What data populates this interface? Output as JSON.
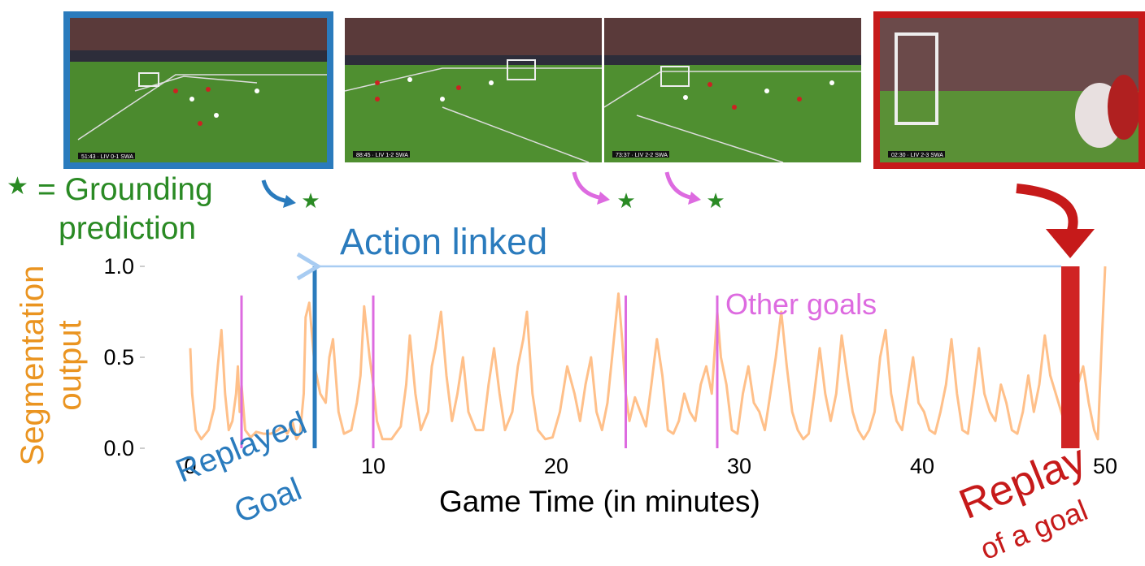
{
  "legend": {
    "star_glyph": "★",
    "line1": "= Grounding",
    "line2": "prediction",
    "color": "#2a8a24"
  },
  "annotations": {
    "action_linked": "Action linked",
    "other_goals": "Other goals",
    "replayed_goal_line1": "Replayed",
    "replayed_goal_line2": "Goal",
    "replay_line1": "Replay",
    "replay_line2": "of a goal"
  },
  "colors": {
    "signal": "#ffc08a",
    "goal_marker": "#dd6be0",
    "action_blue": "#2a7bbd",
    "arrow_light_blue": "#a8ccf2",
    "replay_red": "#d02424",
    "axis_label_orange": "#ea9420",
    "prediction_green": "#2a8a24"
  },
  "thumbnails": [
    {
      "role": "replayed-goal-frame",
      "score": "51:43 · LIV 0-1 SWA",
      "border": "blue"
    },
    {
      "role": "other-goal-frame-1",
      "score": "88:45 · LIV 1-2 SWA",
      "border": "none"
    },
    {
      "role": "other-goal-frame-2",
      "score": "73:37 · LIV 2-2 SWA",
      "border": "none"
    },
    {
      "role": "replay-frame",
      "score": "02:30 · LIV 2-3 SWA",
      "border": "red"
    }
  ],
  "chart_data": {
    "type": "line",
    "title": "",
    "xlabel": "Game Time (in minutes)",
    "ylabel": [
      "Segmentation",
      "output"
    ],
    "xlim": [
      0,
      50
    ],
    "ylim": [
      0,
      1
    ],
    "xticks": [
      0,
      10,
      20,
      30,
      40,
      50
    ],
    "yticks": [
      "0.0",
      "0.5",
      "1.0"
    ],
    "ytick_values": [
      0,
      0.5,
      1.0
    ],
    "grid": false,
    "series": [
      {
        "x": [
          0,
          0.1,
          0.3,
          0.6,
          1.0,
          1.3,
          1.5,
          1.7,
          1.9,
          2.1,
          2.3,
          2.5,
          2.6,
          2.7,
          2.8,
          3.0,
          3.3,
          3.6,
          4.0,
          4.4,
          4.8,
          5.0,
          5.3,
          5.6,
          5.8,
          6.0,
          6.2,
          6.3,
          6.5,
          6.8,
          7.1,
          7.4,
          7.6,
          7.8,
          8.1,
          8.4,
          8.8,
          9.1,
          9.3,
          9.5,
          9.8,
          10.0,
          10.2,
          10.5,
          11.0,
          11.5,
          11.8,
          12.0,
          12.3,
          12.6,
          13.0,
          13.2,
          13.4,
          13.7,
          14.0,
          14.3,
          14.6,
          14.9,
          15.2,
          15.6,
          16.0,
          16.3,
          16.6,
          16.9,
          17.2,
          17.6,
          17.9,
          18.2,
          18.4,
          18.7,
          19.0,
          19.4,
          19.8,
          20.2,
          20.6,
          21.0,
          21.3,
          21.6,
          21.9,
          22.2,
          22.5,
          22.8,
          23.1,
          23.4,
          23.6,
          23.8,
          24.0,
          24.3,
          24.6,
          24.9,
          25.2,
          25.5,
          25.8,
          26.1,
          26.4,
          26.7,
          27.0,
          27.3,
          27.6,
          27.9,
          28.2,
          28.5,
          28.8,
          29.0,
          29.3,
          29.6,
          29.9,
          30.2,
          30.5,
          30.8,
          31.1,
          31.4,
          31.7,
          32.0,
          32.3,
          32.6,
          32.9,
          33.2,
          33.5,
          33.8,
          34.1,
          34.4,
          34.7,
          35.0,
          35.3,
          35.6,
          35.9,
          36.2,
          36.5,
          36.8,
          37.1,
          37.4,
          37.7,
          38.0,
          38.3,
          38.6,
          38.9,
          39.2,
          39.5,
          39.8,
          40.1,
          40.4,
          40.7,
          41.0,
          41.3,
          41.6,
          41.9,
          42.2,
          42.5,
          42.8,
          43.1,
          43.4,
          43.7,
          44.0,
          44.3,
          44.6,
          44.9,
          45.2,
          45.5,
          45.8,
          46.1,
          46.4,
          46.7,
          47.0,
          47.3,
          47.6,
          47.9,
          48.2,
          48.5,
          48.8,
          49.1,
          49.4,
          49.6,
          49.8,
          50.0
        ],
        "y": [
          0.55,
          0.3,
          0.1,
          0.05,
          0.1,
          0.22,
          0.45,
          0.65,
          0.3,
          0.1,
          0.15,
          0.3,
          0.45,
          0.2,
          0.35,
          0.1,
          0.06,
          0.09,
          0.08,
          0.08,
          0.1,
          0.12,
          0.08,
          0.14,
          0.05,
          0.08,
          0.3,
          0.72,
          0.8,
          0.45,
          0.3,
          0.25,
          0.5,
          0.6,
          0.2,
          0.08,
          0.1,
          0.25,
          0.4,
          0.78,
          0.5,
          0.35,
          0.15,
          0.05,
          0.05,
          0.12,
          0.35,
          0.62,
          0.3,
          0.1,
          0.2,
          0.45,
          0.55,
          0.75,
          0.4,
          0.15,
          0.3,
          0.5,
          0.2,
          0.1,
          0.1,
          0.35,
          0.55,
          0.3,
          0.1,
          0.2,
          0.45,
          0.6,
          0.75,
          0.3,
          0.1,
          0.05,
          0.06,
          0.2,
          0.45,
          0.3,
          0.15,
          0.35,
          0.5,
          0.2,
          0.1,
          0.25,
          0.55,
          0.85,
          0.6,
          0.3,
          0.15,
          0.28,
          0.2,
          0.12,
          0.35,
          0.6,
          0.4,
          0.1,
          0.08,
          0.15,
          0.3,
          0.2,
          0.15,
          0.35,
          0.45,
          0.3,
          0.75,
          0.5,
          0.35,
          0.1,
          0.08,
          0.3,
          0.45,
          0.25,
          0.2,
          0.1,
          0.3,
          0.5,
          0.75,
          0.45,
          0.2,
          0.1,
          0.05,
          0.08,
          0.3,
          0.55,
          0.3,
          0.15,
          0.3,
          0.62,
          0.4,
          0.2,
          0.1,
          0.05,
          0.1,
          0.2,
          0.5,
          0.65,
          0.3,
          0.15,
          0.1,
          0.3,
          0.5,
          0.25,
          0.2,
          0.1,
          0.08,
          0.2,
          0.35,
          0.6,
          0.3,
          0.1,
          0.08,
          0.3,
          0.55,
          0.3,
          0.2,
          0.15,
          0.35,
          0.25,
          0.1,
          0.08,
          0.2,
          0.4,
          0.2,
          0.35,
          0.62,
          0.4,
          0.3,
          0.2,
          0.1,
          0.15,
          0.35,
          0.45,
          0.25,
          0.1,
          0.05,
          0.55,
          1.0
        ]
      }
    ],
    "goal_markers_x": [
      2.8,
      10.0,
      23.8,
      28.8
    ],
    "goal_markers_height": 0.84,
    "replayed_goal_x": 6.8,
    "replayed_goal_height": 1.0,
    "replay_interval_x": [
      47.6,
      48.6
    ],
    "replay_height": 1.0,
    "grounding_predictions_x": [
      6.6,
      23.0,
      28.0
    ]
  }
}
